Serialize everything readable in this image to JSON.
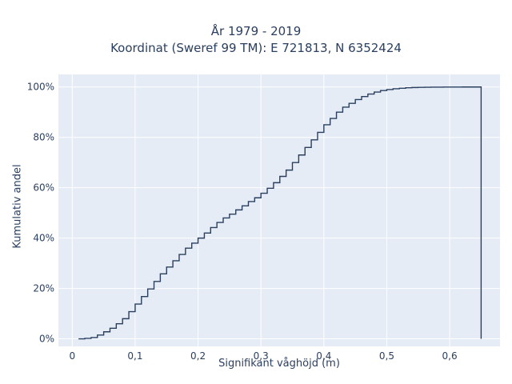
{
  "chart_data": {
    "type": "line",
    "subtype": "ecdf-step",
    "title_lines": [
      "År 1979 - 2019",
      "Koordinat (Sweref 99 TM): E 721813, N 6352424"
    ],
    "xlabel": "Signifikant våghöjd (m)",
    "ylabel": "Kumulativ andel",
    "xlim": [
      -0.022,
      0.68
    ],
    "ylim": [
      -0.03,
      1.05
    ],
    "x_ticks": [
      0,
      0.1,
      0.2,
      0.3,
      0.4,
      0.5,
      0.6
    ],
    "x_tick_labels": [
      "0",
      "0,1",
      "0,2",
      "0,3",
      "0,4",
      "0,5",
      "0,6"
    ],
    "y_ticks": [
      0,
      0.2,
      0.4,
      0.6,
      0.8,
      1.0
    ],
    "y_tick_labels": [
      "0%",
      "20%",
      "40%",
      "60%",
      "80%",
      "100%"
    ],
    "grid": true,
    "line_color": "#2a3f5f",
    "plot_bg": "#e5ecf6",
    "series": [
      {
        "x": [
          0.01,
          0.02,
          0.03,
          0.04,
          0.05,
          0.06,
          0.07,
          0.08,
          0.09,
          0.1,
          0.11,
          0.12,
          0.13,
          0.14,
          0.15,
          0.16,
          0.17,
          0.18,
          0.19,
          0.2,
          0.21,
          0.22,
          0.23,
          0.24,
          0.25,
          0.26,
          0.27,
          0.28,
          0.29,
          0.3,
          0.31,
          0.32,
          0.33,
          0.34,
          0.35,
          0.36,
          0.37,
          0.38,
          0.39,
          0.4,
          0.41,
          0.42,
          0.43,
          0.44,
          0.45,
          0.46,
          0.47,
          0.48,
          0.49,
          0.5,
          0.51,
          0.52,
          0.53,
          0.54,
          0.55,
          0.56,
          0.57,
          0.58,
          0.59,
          0.6,
          0.61,
          0.62,
          0.63,
          0.64,
          0.65
        ],
        "y": [
          0.0,
          0.002,
          0.005,
          0.015,
          0.028,
          0.042,
          0.06,
          0.08,
          0.108,
          0.138,
          0.168,
          0.198,
          0.228,
          0.258,
          0.285,
          0.31,
          0.335,
          0.36,
          0.38,
          0.4,
          0.42,
          0.442,
          0.462,
          0.48,
          0.495,
          0.512,
          0.528,
          0.545,
          0.56,
          0.578,
          0.598,
          0.62,
          0.645,
          0.67,
          0.7,
          0.73,
          0.76,
          0.79,
          0.82,
          0.85,
          0.875,
          0.9,
          0.92,
          0.935,
          0.95,
          0.962,
          0.972,
          0.98,
          0.986,
          0.99,
          0.993,
          0.995,
          0.997,
          0.998,
          0.9985,
          0.999,
          0.9993,
          0.9995,
          0.9997,
          0.9998,
          0.9999,
          0.99995,
          1.0,
          1.0,
          1.0
        ],
        "drop_to_zero_at": 0.65
      }
    ]
  }
}
